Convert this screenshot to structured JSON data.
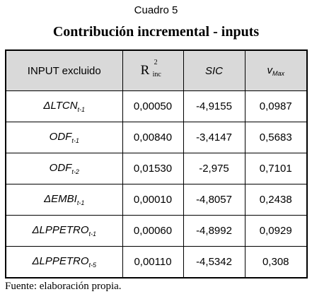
{
  "caption": {
    "number": "Cuadro 5",
    "title": "Contribución incremental - inputs"
  },
  "table": {
    "headers": {
      "input": "INPUT excluido",
      "r_base": "R",
      "r_sup": "2",
      "r_sub": "inc",
      "sic": "SIC",
      "vmax_base": "v",
      "vmax_sub": "Max"
    },
    "rows": [
      {
        "input": "ΔLTCN",
        "input_sub": "t-1",
        "r2": "0,00050",
        "sic": "-4,9155",
        "vmax": "0,0987"
      },
      {
        "input": "ODF",
        "input_sub": "t-1",
        "r2": "0,00840",
        "sic": "-3,4147",
        "vmax": "0,5683"
      },
      {
        "input": "ODF",
        "input_sub": "t-2",
        "r2": "0,01530",
        "sic": "-2,975",
        "vmax": "0,7101"
      },
      {
        "input": "ΔEMBI",
        "input_sub": "t-1",
        "r2": "0,00010",
        "sic": "-4,8057",
        "vmax": "0,2438"
      },
      {
        "input": "ΔLPPETRO",
        "input_sub": "t-1",
        "r2": "0,00060",
        "sic": "-4,8992",
        "vmax": "0,0929"
      },
      {
        "input": "ΔLPPETRO",
        "input_sub": "t-5",
        "r2": "0,00110",
        "sic": "-4,5342",
        "vmax": "0,308"
      }
    ]
  },
  "source": "Fuente: elaboración propia."
}
